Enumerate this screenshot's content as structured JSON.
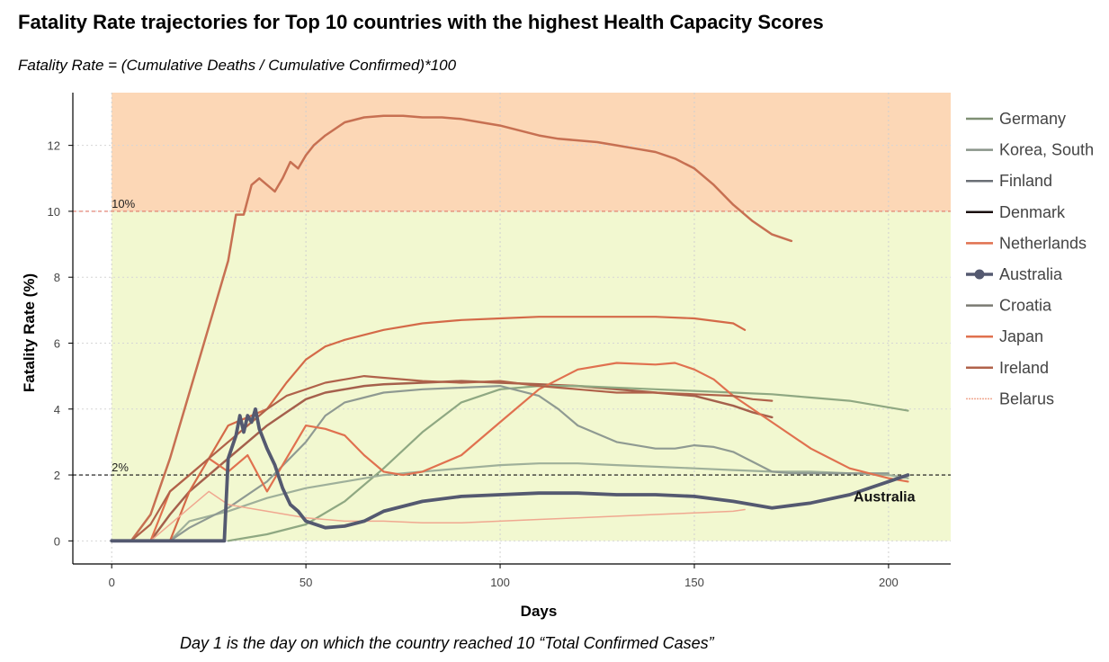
{
  "title": "Fatality Rate trajectories for Top 10 countries with the highest Health Capacity Scores",
  "subtitle": "Fatality Rate = (Cumulative Deaths / Cumulative Confirmed)*100",
  "footnote": "Day 1 is the day on which the country reached 10 “Total Confirmed Cases”",
  "chart_data": {
    "type": "line",
    "xlabel": "Days",
    "ylabel": "Fatality Rate (%)",
    "xlim": [
      -10,
      216
    ],
    "ylim": [
      -0.7,
      13.6
    ],
    "xticks": [
      0,
      50,
      100,
      150,
      200
    ],
    "yticks": [
      0,
      2,
      4,
      6,
      8,
      10,
      12
    ],
    "grid": true,
    "legend_position": "right",
    "bands": [
      {
        "from": 10,
        "to": 13.6,
        "color": "#fcd7b6"
      },
      {
        "from": 0,
        "to": 10,
        "color": "#f2f8d0"
      }
    ],
    "reference_lines": [
      {
        "y": 10,
        "label": "10%",
        "color": "#e07a6a",
        "style": "dashed"
      },
      {
        "y": 2,
        "label": "2%",
        "color": "#111111",
        "style": "dashed"
      }
    ],
    "annotations": [
      {
        "text": "Australia",
        "x": 191,
        "y": 1.2
      }
    ],
    "series": [
      {
        "name": "Germany",
        "color": "#8fa882",
        "x": [
          30,
          40,
          50,
          60,
          70,
          80,
          90,
          100,
          110,
          120,
          130,
          140,
          150,
          160,
          170,
          180,
          190,
          200,
          205
        ],
        "y": [
          0,
          0.2,
          0.5,
          1.2,
          2.2,
          3.3,
          4.2,
          4.6,
          4.7,
          4.7,
          4.65,
          4.6,
          4.55,
          4.5,
          4.45,
          4.35,
          4.25,
          4.05,
          3.95
        ]
      },
      {
        "name": "Korea, South",
        "color": "#9fb09a",
        "x": [
          0,
          15,
          20,
          30,
          40,
          50,
          60,
          70,
          80,
          90,
          100,
          110,
          120,
          130,
          140,
          150,
          160,
          170,
          180,
          190,
          200,
          205
        ],
        "y": [
          0,
          0,
          0.6,
          0.9,
          1.3,
          1.6,
          1.8,
          2.0,
          2.1,
          2.2,
          2.3,
          2.35,
          2.35,
          2.3,
          2.25,
          2.2,
          2.15,
          2.1,
          2.1,
          2.05,
          2.0,
          1.9
        ]
      },
      {
        "name": "Finland",
        "color": "#8f9a92",
        "x": [
          0,
          15,
          20,
          30,
          40,
          50,
          55,
          60,
          70,
          80,
          90,
          100,
          110,
          115,
          120,
          130,
          140,
          145,
          150,
          155,
          160,
          165,
          170,
          175,
          200
        ],
        "y": [
          0,
          0,
          0.4,
          1.0,
          1.8,
          3.0,
          3.8,
          4.2,
          4.5,
          4.6,
          4.65,
          4.7,
          4.4,
          4.0,
          3.5,
          3.0,
          2.8,
          2.8,
          2.9,
          2.85,
          2.7,
          2.4,
          2.1,
          2.05,
          2.05
        ]
      },
      {
        "name": "Denmark",
        "color": "#1a1a1a",
        "x": [],
        "y": []
      },
      {
        "name": "Netherlands",
        "color": "#d46a48",
        "x": [
          0,
          15,
          20,
          25,
          30,
          40,
          45,
          50,
          55,
          60,
          70,
          80,
          90,
          100,
          110,
          120,
          130,
          140,
          150,
          160,
          163
        ],
        "y": [
          0,
          0,
          1.5,
          2.5,
          3.5,
          4.0,
          4.8,
          5.5,
          5.9,
          6.1,
          6.4,
          6.6,
          6.7,
          6.75,
          6.8,
          6.8,
          6.8,
          6.8,
          6.75,
          6.6,
          6.4
        ]
      },
      {
        "name": "Australia",
        "color": "#545970",
        "x": [
          0,
          29,
          30,
          32,
          33,
          34,
          35,
          36,
          37,
          38,
          40,
          42,
          44,
          46,
          48,
          50,
          55,
          60,
          65,
          70,
          80,
          90,
          100,
          110,
          120,
          130,
          140,
          150,
          160,
          170,
          180,
          190,
          200,
          205
        ],
        "y": [
          0,
          0,
          2.5,
          3.2,
          3.8,
          3.3,
          3.8,
          3.6,
          4.0,
          3.4,
          2.8,
          2.3,
          1.6,
          1.1,
          0.9,
          0.6,
          0.4,
          0.45,
          0.6,
          0.9,
          1.2,
          1.35,
          1.4,
          1.45,
          1.45,
          1.4,
          1.4,
          1.35,
          1.2,
          1.0,
          1.15,
          1.4,
          1.8,
          2.0
        ]
      },
      {
        "name": "Croatia",
        "color": "#7a7a72",
        "x": [],
        "y": []
      },
      {
        "name": "Japan",
        "color": "#e0714f",
        "x": [
          0,
          10,
          15,
          20,
          25,
          30,
          35,
          40,
          45,
          50,
          55,
          60,
          65,
          70,
          75,
          80,
          90,
          100,
          110,
          120,
          130,
          140,
          145,
          150,
          155,
          160,
          170,
          180,
          190,
          200,
          205
        ],
        "y": [
          0,
          0,
          1.5,
          2.0,
          2.5,
          2.1,
          2.6,
          1.5,
          2.5,
          3.5,
          3.4,
          3.2,
          2.6,
          2.1,
          2.0,
          2.1,
          2.6,
          3.6,
          4.6,
          5.2,
          5.4,
          5.35,
          5.4,
          5.2,
          4.9,
          4.4,
          3.6,
          2.8,
          2.2,
          1.9,
          1.8
        ]
      },
      {
        "name": "Ireland",
        "color": "#b0624a",
        "x": [
          0,
          5,
          10,
          15,
          20,
          25,
          30,
          35,
          40,
          45,
          50,
          55,
          60,
          65,
          70,
          80,
          90,
          100,
          110,
          120,
          130,
          140,
          150,
          160,
          165,
          170
        ],
        "y": [
          0,
          0,
          0.5,
          1.5,
          2.0,
          2.5,
          3.0,
          3.5,
          4.0,
          4.4,
          4.6,
          4.8,
          4.9,
          5.0,
          4.95,
          4.85,
          4.8,
          4.85,
          4.7,
          4.6,
          4.5,
          4.5,
          4.45,
          4.4,
          4.3,
          4.25
        ]
      },
      {
        "name": "Belarus",
        "color": "#f0a890",
        "x": [
          10,
          15,
          20,
          25,
          30,
          35,
          40,
          50,
          60,
          70,
          80,
          90,
          100,
          110,
          120,
          130,
          140,
          150,
          160,
          163
        ],
        "y": [
          0,
          0.5,
          1.0,
          1.5,
          1.1,
          1.0,
          0.9,
          0.7,
          0.6,
          0.6,
          0.55,
          0.55,
          0.6,
          0.65,
          0.7,
          0.75,
          0.8,
          0.85,
          0.9,
          0.95
        ]
      }
    ],
    "extra_series": [
      {
        "color": "#c77052",
        "x": [
          0,
          5,
          10,
          15,
          20,
          25,
          30,
          32,
          34,
          36,
          38,
          40,
          42,
          44,
          46,
          48,
          50,
          52,
          55,
          60,
          65,
          70,
          75,
          80,
          85,
          90,
          95,
          100,
          105,
          110,
          115,
          120,
          125,
          130,
          135,
          140,
          145,
          150,
          155,
          160,
          165,
          170,
          175
        ],
        "y": [
          0,
          0,
          0.8,
          2.5,
          4.5,
          6.5,
          8.5,
          9.9,
          9.9,
          10.8,
          11.0,
          10.8,
          10.6,
          11.0,
          11.5,
          11.3,
          11.7,
          12.0,
          12.3,
          12.7,
          12.85,
          12.9,
          12.9,
          12.85,
          12.85,
          12.8,
          12.7,
          12.6,
          12.45,
          12.3,
          12.2,
          12.15,
          12.1,
          12.0,
          11.9,
          11.8,
          11.6,
          11.3,
          10.8,
          10.2,
          9.7,
          9.3,
          9.1
        ]
      },
      {
        "color": "#a5604c",
        "x": [
          0,
          10,
          15,
          20,
          25,
          30,
          35,
          40,
          45,
          50,
          55,
          60,
          65,
          70,
          80,
          90,
          100,
          110,
          120,
          130,
          140,
          150,
          160,
          165,
          170
        ],
        "y": [
          0,
          0,
          0.8,
          1.5,
          2.0,
          2.5,
          3.0,
          3.5,
          3.9,
          4.3,
          4.5,
          4.6,
          4.7,
          4.75,
          4.8,
          4.85,
          4.8,
          4.75,
          4.7,
          4.6,
          4.5,
          4.4,
          4.1,
          3.9,
          3.75
        ]
      }
    ]
  },
  "legend": {
    "items": [
      {
        "label": "Germany",
        "color": "#7f8f74",
        "marker": false
      },
      {
        "label": "Korea, South",
        "color": "#8a958a",
        "marker": false
      },
      {
        "label": "Finland",
        "color": "#6a6f75",
        "marker": false
      },
      {
        "label": "Denmark",
        "color": "#1a1010",
        "marker": false
      },
      {
        "label": "Netherlands",
        "color": "#e0714f",
        "marker": false
      },
      {
        "label": "Australia",
        "color": "#545970",
        "marker": true
      },
      {
        "label": "Croatia",
        "color": "#7a7a72",
        "marker": false
      },
      {
        "label": "Japan",
        "color": "#e0714f",
        "marker": false
      },
      {
        "label": "Ireland",
        "color": "#b0624a",
        "marker": false
      },
      {
        "label": "Belarus",
        "color": "#f0a890",
        "marker": false
      }
    ]
  }
}
